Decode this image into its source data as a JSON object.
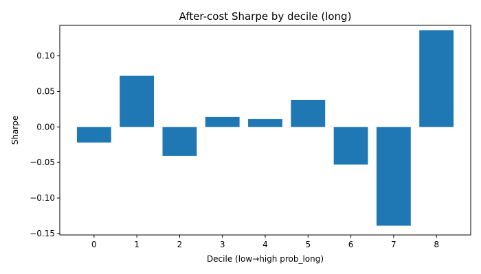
{
  "chart_data": {
    "type": "bar",
    "title": "After-cost Sharpe by decile (long)",
    "xlabel": "Decile (low→high prob_long)",
    "ylabel": "Sharpe",
    "categories": [
      "0",
      "1",
      "2",
      "3",
      "4",
      "5",
      "6",
      "7",
      "8"
    ],
    "values": [
      -0.022,
      0.072,
      -0.041,
      0.014,
      0.011,
      0.038,
      -0.053,
      -0.139,
      0.136
    ],
    "ylim": [
      -0.152,
      0.143
    ],
    "yticks": [
      -0.15,
      -0.1,
      -0.05,
      0.0,
      0.05,
      0.1
    ],
    "ytick_labels": [
      "−0.15",
      "−0.10",
      "−0.05",
      "0.00",
      "0.05",
      "0.10"
    ],
    "grid": false,
    "bar_color": "#1f77b4"
  }
}
